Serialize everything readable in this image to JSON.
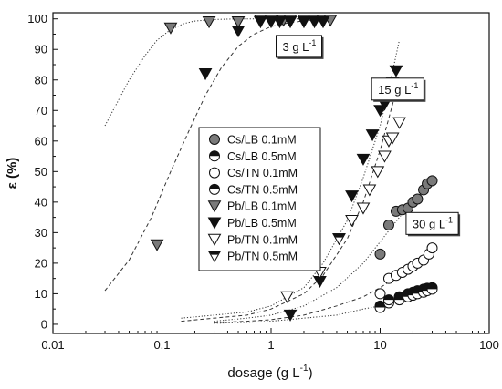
{
  "chart_data": {
    "type": "scatter",
    "xlabel": "dosage (g L",
    "xlabel_sup": "-1",
    "xlabel_close": ")",
    "ylabel": "ε (%)",
    "xscale": "log",
    "xlim": [
      0.01,
      100
    ],
    "ylim": [
      -3,
      102
    ],
    "x_ticks": [
      0.01,
      0.1,
      1,
      10,
      100
    ],
    "x_tick_labels": [
      "0.01",
      "0.1",
      "1",
      "10",
      "100"
    ],
    "y_ticks": [
      0,
      10,
      20,
      30,
      40,
      50,
      60,
      70,
      80,
      90,
      100
    ],
    "y_tick_labels": [
      "0",
      "10",
      "20",
      "30",
      "40",
      "50",
      "60",
      "70",
      "80",
      "90",
      "100"
    ],
    "grid": false,
    "legend_position": "center-left",
    "annotations": [
      {
        "base": "3 g L",
        "sup": "-1",
        "x": 1.8,
        "y": 91
      },
      {
        "base": "15 g L",
        "sup": "-1",
        "x": 14.5,
        "y": 77
      },
      {
        "base": "30 g L",
        "sup": "-1",
        "x": 30,
        "y": 33
      }
    ],
    "series": [
      {
        "name": "Cs/LB 0.1mM",
        "marker": "circle-filled",
        "x": [
          10,
          12,
          14,
          16,
          18,
          20,
          22,
          25,
          27,
          30
        ],
        "y": [
          23,
          32.5,
          37,
          37.5,
          38,
          40,
          41,
          44,
          46,
          47
        ]
      },
      {
        "name": "Cs/LB 0.5mM",
        "marker": "circle-half",
        "x": [
          10,
          12,
          15,
          18,
          20,
          22,
          25,
          27,
          30
        ],
        "y": [
          6,
          7,
          9,
          10,
          10.5,
          11,
          11.5,
          11.8,
          12
        ]
      },
      {
        "name": "Cs/TN 0.1mM",
        "marker": "circle-open",
        "x": [
          10,
          12,
          14,
          16,
          18,
          20,
          22,
          25,
          28,
          30
        ],
        "y": [
          10,
          15,
          16,
          17,
          18,
          19,
          20,
          21,
          23,
          25
        ]
      },
      {
        "name": "Cs/TN 0.5mM",
        "marker": "circle-half",
        "x": [
          10,
          12,
          15,
          18,
          20,
          22,
          25,
          27,
          30
        ],
        "y": [
          5.5,
          8,
          8,
          9,
          9.5,
          10,
          10.5,
          11,
          11.5
        ]
      },
      {
        "name": "Pb/LB 0.1mM",
        "marker": "triangle-filled-gray",
        "x": [
          0.09,
          0.12,
          0.27,
          0.5,
          0.8,
          1,
          1.3,
          1.5,
          2,
          2.5,
          3,
          3.5
        ],
        "y": [
          26,
          97,
          99,
          99,
          99.5,
          99.5,
          99.5,
          99.5,
          99.5,
          99.5,
          99.5,
          99.5
        ]
      },
      {
        "name": "Pb/LB 0.5mM",
        "marker": "triangle-filled-black",
        "x": [
          0.25,
          0.5,
          0.8,
          1,
          1.2,
          1.5,
          2,
          2.5,
          3,
          1.5,
          2.8,
          4.2,
          5.5,
          7,
          8.5,
          10,
          11,
          12,
          13,
          14
        ],
        "y": [
          82,
          96,
          99,
          99,
          99,
          99,
          99,
          99,
          99,
          3,
          14,
          28,
          42,
          54,
          62,
          70,
          72,
          76,
          79,
          83
        ]
      },
      {
        "name": "Pb/TN 0.1mM",
        "marker": "triangle-open",
        "x": [
          1.4,
          2.8,
          5.5,
          7,
          8,
          9.5,
          11,
          12,
          13,
          15
        ],
        "y": [
          9,
          17,
          34,
          38,
          44,
          50,
          55,
          60,
          61,
          66
        ]
      },
      {
        "name": "Pb/TN 0.5mM",
        "marker": "triangle-half",
        "x": [
          4.2
        ],
        "y": [
          28
        ]
      }
    ],
    "fit_curves": [
      {
        "style": "dotted",
        "x": [
          0.03,
          0.05,
          0.07,
          0.09,
          0.12,
          0.16,
          0.2,
          0.3,
          0.5,
          0.8,
          1.2,
          2,
          3.5
        ],
        "y": [
          65,
          80,
          88,
          93,
          96.5,
          98.5,
          99.3,
          99.8,
          100,
          100,
          100,
          100,
          100
        ]
      },
      {
        "style": "dashed",
        "x": [
          0.03,
          0.05,
          0.08,
          0.12,
          0.18,
          0.25,
          0.35,
          0.5,
          0.7,
          1,
          1.5,
          2.2,
          3.5
        ],
        "y": [
          11,
          21,
          35,
          50,
          64,
          75,
          84,
          91,
          95,
          97.5,
          98.8,
          99.5,
          100
        ]
      },
      {
        "style": "dotted",
        "x": [
          0.15,
          0.3,
          0.6,
          1,
          2,
          3,
          5,
          7,
          10,
          12,
          15
        ],
        "y": [
          2,
          3,
          4,
          6,
          12,
          20,
          34,
          48,
          65,
          77,
          93
        ]
      },
      {
        "style": "dashed",
        "x": [
          0.15,
          0.3,
          0.6,
          1,
          2,
          3,
          5,
          7,
          10,
          13,
          15
        ],
        "y": [
          1,
          2,
          3,
          5,
          10,
          16,
          28,
          40,
          57,
          72,
          80
        ]
      },
      {
        "style": "dotted",
        "x": [
          0.3,
          0.6,
          1,
          2,
          4,
          7,
          10,
          15,
          20,
          30
        ],
        "y": [
          1,
          2,
          3,
          6,
          12,
          20,
          27,
          35,
          40,
          47
        ]
      },
      {
        "style": "dashed",
        "x": [
          0.3,
          0.6,
          1,
          2,
          4,
          7,
          10,
          15,
          20,
          30
        ],
        "y": [
          0.5,
          1,
          1.5,
          3,
          6,
          9,
          12,
          16,
          20,
          25
        ]
      },
      {
        "style": "dotted",
        "x": [
          0.3,
          0.6,
          1,
          2,
          4,
          7,
          10,
          15,
          20,
          30
        ],
        "y": [
          0.3,
          0.6,
          1,
          2,
          3,
          5,
          6,
          8,
          9.5,
          12
        ]
      }
    ]
  }
}
